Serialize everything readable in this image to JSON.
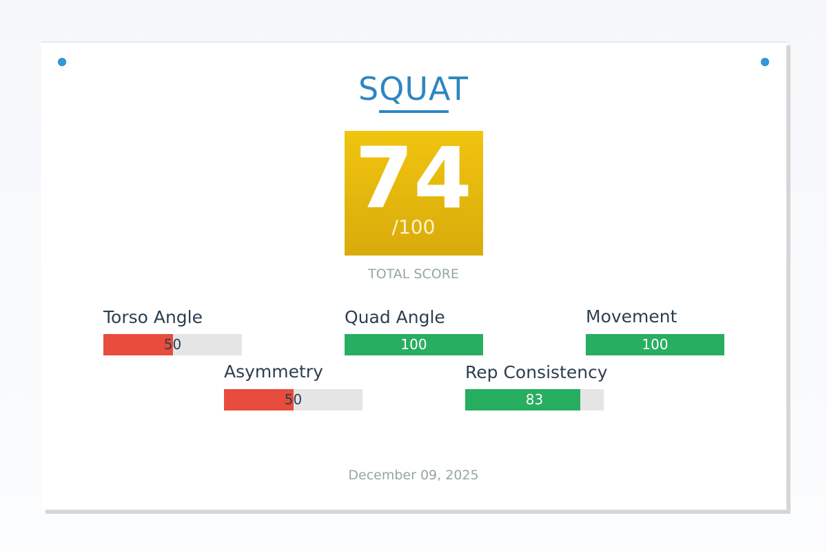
{
  "title": "SQUAT",
  "score": {
    "value": "74",
    "max": "/100",
    "caption": "TOTAL SCORE"
  },
  "metrics": [
    {
      "label": "Torso Angle",
      "value": "50",
      "fraction": 0.5,
      "color": "#e74c3c"
    },
    {
      "label": "Quad Angle",
      "value": "100",
      "fraction": 1.0,
      "color": "#27ae60"
    },
    {
      "label": "Movement",
      "value": "100",
      "fraction": 1.0,
      "color": "#27ae60"
    },
    {
      "label": "Asymmetry",
      "value": "50",
      "fraction": 0.5,
      "color": "#e74c3c"
    },
    {
      "label": "Rep Consistency",
      "value": "83",
      "fraction": 0.83,
      "color": "#27ae60"
    }
  ],
  "date": "December 09, 2025",
  "colors": {
    "accent": "#2e86c1",
    "score_gold": "#f1c40f",
    "good": "#27ae60",
    "bad": "#e74c3c"
  }
}
